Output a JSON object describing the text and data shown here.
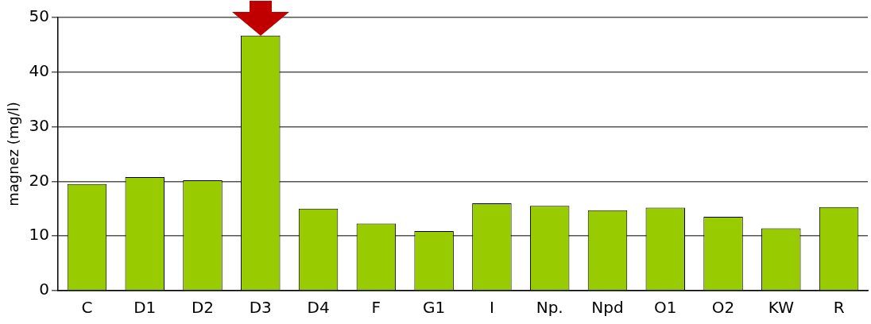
{
  "chart_data": {
    "type": "bar",
    "ylabel": "magnez (mg/l)",
    "categories": [
      "C",
      "D1",
      "D2",
      "D3",
      "D4",
      "F",
      "G1",
      "I",
      "Np.",
      "Npd",
      "O1",
      "O2",
      "KW",
      "R"
    ],
    "values": [
      19.5,
      20.8,
      20.2,
      46.7,
      15.0,
      12.3,
      10.9,
      16.0,
      15.5,
      14.7,
      15.2,
      13.5,
      11.4,
      15.3
    ],
    "color": "#99cc00",
    "ylim": [
      0,
      50
    ],
    "yticks": [
      0,
      10,
      20,
      30,
      40,
      50
    ],
    "grid": "y"
  }
}
